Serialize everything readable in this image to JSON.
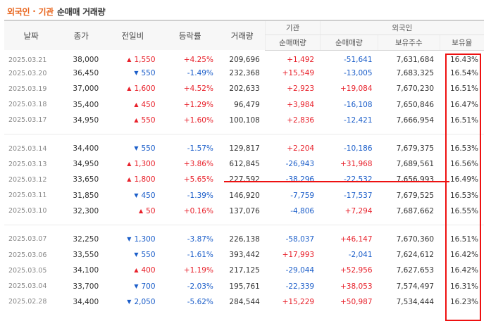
{
  "title": {
    "part1": "외국인",
    "separator": "·",
    "part2": "기관",
    "rest": "순매매 거래량"
  },
  "headers": {
    "date": "날짜",
    "close": "종가",
    "change": "전일비",
    "rate": "등락률",
    "volume": "거래량",
    "institution": "기관",
    "foreign": "외국인",
    "inst_net": "순매매량",
    "foreign_net": "순매매량",
    "holdings": "보유주수",
    "ratio": "보유율"
  },
  "colors": {
    "up": "#e8202a",
    "down": "#1a5dc9",
    "title_accent": "#e8651d",
    "highlight": "#ee1111"
  },
  "groups": [
    [
      {
        "date": "2025.03.21",
        "close": "38,000",
        "dir": "up",
        "change": "1,550",
        "rate": "+4.25%",
        "volume": "209,696",
        "inst": "+1,492",
        "frgn": "-51,641",
        "holdings": "7,631,684",
        "ratio": "16.43%"
      },
      {
        "date": "2025.03.20",
        "close": "36,450",
        "dir": "down",
        "change": "550",
        "rate": "-1.49%",
        "volume": "232,368",
        "inst": "+15,549",
        "frgn": "-13,005",
        "holdings": "7,683,325",
        "ratio": "16.54%"
      },
      {
        "date": "2025.03.19",
        "close": "37,000",
        "dir": "up",
        "change": "1,600",
        "rate": "+4.52%",
        "volume": "202,633",
        "inst": "+2,923",
        "frgn": "+19,084",
        "holdings": "7,670,230",
        "ratio": "16.51%"
      },
      {
        "date": "2025.03.18",
        "close": "35,400",
        "dir": "up",
        "change": "450",
        "rate": "+1.29%",
        "volume": "96,479",
        "inst": "+3,984",
        "frgn": "-16,108",
        "holdings": "7,650,846",
        "ratio": "16.47%"
      },
      {
        "date": "2025.03.17",
        "close": "34,950",
        "dir": "up",
        "change": "550",
        "rate": "+1.60%",
        "volume": "100,108",
        "inst": "+2,836",
        "frgn": "-12,421",
        "holdings": "7,666,954",
        "ratio": "16.51%"
      }
    ],
    [
      {
        "date": "2025.03.14",
        "close": "34,400",
        "dir": "down",
        "change": "550",
        "rate": "-1.57%",
        "volume": "129,817",
        "inst": "+2,204",
        "frgn": "-10,186",
        "holdings": "7,679,375",
        "ratio": "16.53%"
      },
      {
        "date": "2025.03.13",
        "close": "34,950",
        "dir": "up",
        "change": "1,300",
        "rate": "+3.86%",
        "volume": "612,845",
        "inst": "-26,943",
        "frgn": "+31,968",
        "holdings": "7,689,561",
        "ratio": "16.56%"
      },
      {
        "date": "2025.03.12",
        "close": "33,650",
        "dir": "up",
        "change": "1,800",
        "rate": "+5.65%",
        "volume": "227,592",
        "inst": "-38,296",
        "frgn": "-22,532",
        "holdings": "7,656,993",
        "ratio": "16.49%"
      },
      {
        "date": "2025.03.11",
        "close": "31,850",
        "dir": "down",
        "change": "450",
        "rate": "-1.39%",
        "volume": "146,920",
        "inst": "-7,759",
        "frgn": "-17,537",
        "holdings": "7,679,525",
        "ratio": "16.53%"
      },
      {
        "date": "2025.03.10",
        "close": "32,300",
        "dir": "up",
        "change": "50",
        "rate": "+0.16%",
        "volume": "137,076",
        "inst": "-4,806",
        "frgn": "+7,294",
        "holdings": "7,687,662",
        "ratio": "16.55%"
      }
    ],
    [
      {
        "date": "2025.03.07",
        "close": "32,250",
        "dir": "down",
        "change": "1,300",
        "rate": "-3.87%",
        "volume": "226,138",
        "inst": "-58,037",
        "frgn": "+46,147",
        "holdings": "7,670,360",
        "ratio": "16.51%"
      },
      {
        "date": "2025.03.06",
        "close": "33,550",
        "dir": "down",
        "change": "550",
        "rate": "-1.61%",
        "volume": "393,442",
        "inst": "+17,993",
        "frgn": "-2,041",
        "holdings": "7,624,612",
        "ratio": "16.42%"
      },
      {
        "date": "2025.03.05",
        "close": "34,100",
        "dir": "up",
        "change": "400",
        "rate": "+1.19%",
        "volume": "217,125",
        "inst": "-29,044",
        "frgn": "+52,956",
        "holdings": "7,627,653",
        "ratio": "16.42%"
      },
      {
        "date": "2025.03.04",
        "close": "33,700",
        "dir": "down",
        "change": "700",
        "rate": "-2.03%",
        "volume": "195,761",
        "inst": "-22,339",
        "frgn": "+38,053",
        "holdings": "7,574,497",
        "ratio": "16.31%"
      },
      {
        "date": "2025.02.28",
        "close": "34,400",
        "dir": "down",
        "change": "2,050",
        "rate": "-5.62%",
        "volume": "284,544",
        "inst": "+15,229",
        "frgn": "+50,987",
        "holdings": "7,534,444",
        "ratio": "16.23%"
      }
    ]
  ]
}
